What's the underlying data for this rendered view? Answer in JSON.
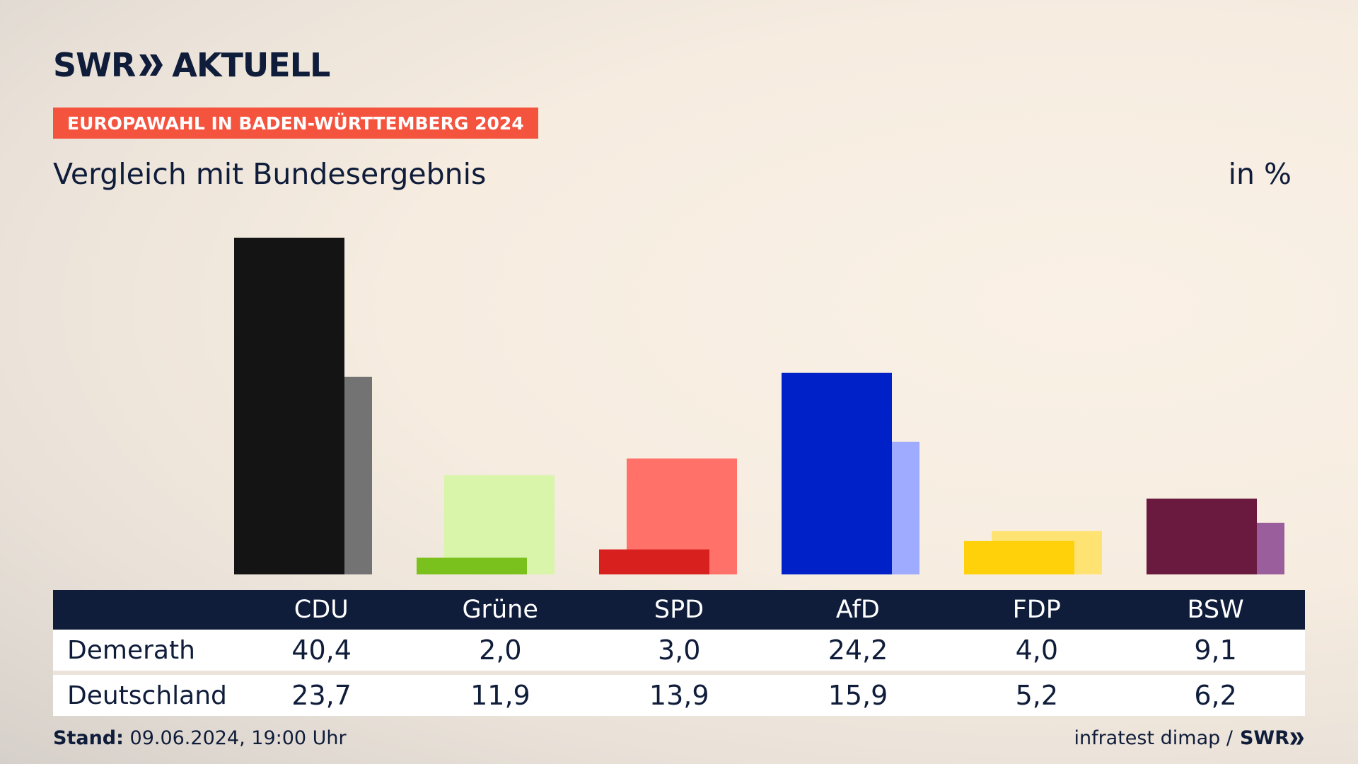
{
  "header": {
    "logo_text_left": "SWR",
    "logo_text_right": "AKTUELL",
    "badge": "EUROPAWAHL IN BADEN-WÜRTTEMBERG 2024",
    "subtitle": "Vergleich mit Bundesergebnis",
    "unit": "in %"
  },
  "colors": {
    "badge": "#f4533e",
    "navy": "#0f1c3a"
  },
  "chart_data": {
    "type": "bar",
    "categories": [
      "CDU",
      "Grüne",
      "SPD",
      "AfD",
      "FDP",
      "BSW"
    ],
    "series": [
      {
        "name": "Demerath",
        "values": [
          40.4,
          2.0,
          3.0,
          24.2,
          4.0,
          9.1
        ]
      },
      {
        "name": "Deutschland",
        "values": [
          23.7,
          11.9,
          13.9,
          15.9,
          5.2,
          6.2
        ]
      }
    ],
    "colors_primary": [
      "#141414",
      "#7ac11d",
      "#d8211f",
      "#0020c8",
      "#ffd10a",
      "#6a1a3e"
    ],
    "colors_secondary": [
      "#737373",
      "#d8f5a9",
      "#ff7169",
      "#9eabff",
      "#ffe372",
      "#9b5e9d"
    ],
    "ylim": [
      0,
      40.4
    ],
    "grid": false
  },
  "table": {
    "row_labels": [
      "Demerath",
      "Deutschland"
    ],
    "values_text": [
      [
        "40,4",
        "2,0",
        "3,0",
        "24,2",
        "4,0",
        "9,1"
      ],
      [
        "23,7",
        "11,9",
        "13,9",
        "15,9",
        "5,2",
        "6,2"
      ]
    ]
  },
  "footer": {
    "stand_label": "Stand:",
    "stand_value": "09.06.2024, 19:00 Uhr",
    "source": "infratest dimap /",
    "source_logo": "SWR"
  }
}
